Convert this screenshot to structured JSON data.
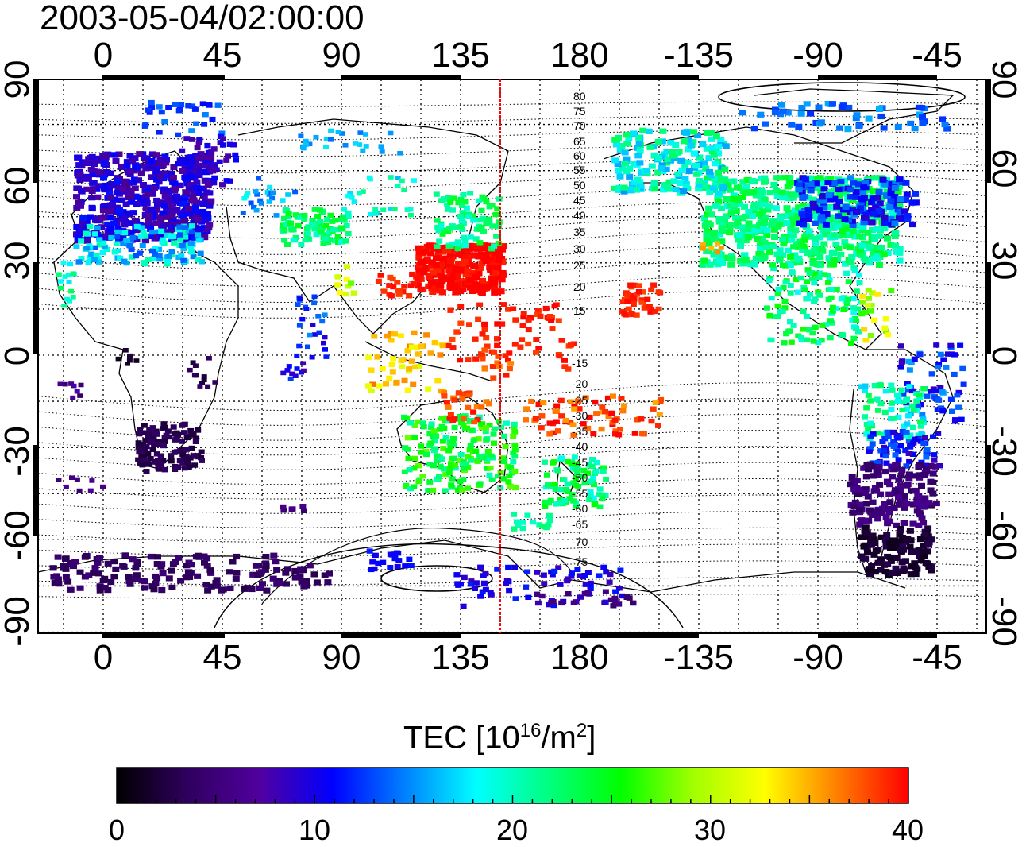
{
  "timestamp": "2003-05-04/02:00:00",
  "axes": {
    "lon_ticks": [
      "0",
      "45",
      "90",
      "135",
      "180",
      "-135",
      "-90",
      "-45"
    ],
    "lat_ticks": [
      "90",
      "60",
      "30",
      "0",
      "-30",
      "-60",
      "-90"
    ]
  },
  "overlay": {
    "meridian_lon": 150,
    "meridian_color": "#ff0000",
    "contour_labels": [
      "80",
      "75",
      "70",
      "65",
      "60",
      "55",
      "50",
      "45",
      "40",
      "35",
      "30",
      "25",
      "20",
      "15",
      "-15",
      "-20",
      "-25",
      "-30",
      "-35",
      "-40",
      "-45",
      "-50",
      "-55",
      "-60",
      "-65",
      "-70",
      "-75"
    ]
  },
  "colorbar": {
    "title_prefix": "TEC  [10",
    "title_sup1": "16",
    "title_mid": "/m",
    "title_sup2": "2",
    "title_suffix": "]",
    "ticks": [
      "0",
      "10",
      "20",
      "30",
      "40"
    ],
    "min": 0,
    "max": 40,
    "stops": [
      "#000000",
      "#300060",
      "#5000a0",
      "#0000ff",
      "#0080ff",
      "#00ffff",
      "#00ff80",
      "#00ff00",
      "#a0ff00",
      "#ffff00",
      "#ff8000",
      "#ff0000"
    ]
  },
  "data_regions": [
    {
      "region": "Europe",
      "tec": 9
    },
    {
      "region": "Japan / NW Pacific",
      "tec": 40
    },
    {
      "region": "North America",
      "tec": 22
    },
    {
      "region": "South America (south)",
      "tec": 5
    },
    {
      "region": "Southern Africa",
      "tec": 3
    },
    {
      "region": "Australia",
      "tec": 24
    },
    {
      "region": "New Zealand",
      "tec": 22
    },
    {
      "region": "Antarctica",
      "tec": 4
    }
  ]
}
